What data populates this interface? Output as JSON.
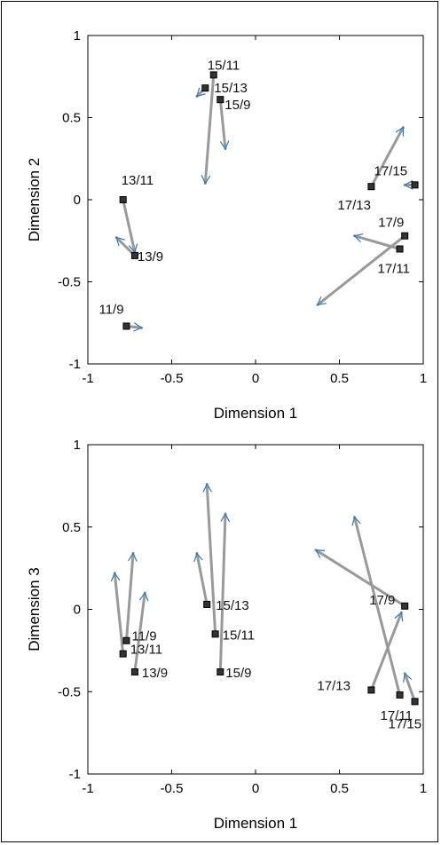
{
  "colors": {
    "axis": "#000000",
    "segment": "#999999",
    "arrow": "#2a7ab9",
    "marker_fill": "#333333",
    "marker_edge": "#000000"
  },
  "chart_data": [
    {
      "type": "scatter",
      "xlabel": "Dimension 1",
      "ylabel": "Dimension 2",
      "xlim": [
        -1,
        1
      ],
      "ylim": [
        -1,
        1
      ],
      "xticks": [
        "-1",
        "-0.5",
        "0",
        "0.5",
        "1"
      ],
      "yticks": [
        "-1",
        "-0.5",
        "0",
        "0.5",
        "1"
      ],
      "grid": false,
      "points": [
        {
          "label": "13/11",
          "x": -0.79,
          "y": 0.0,
          "arrow_from": [
            -0.79,
            0.0
          ],
          "arrow_to": [
            -0.72,
            -0.32
          ]
        },
        {
          "label": "13/9",
          "x": -0.72,
          "y": -0.34,
          "arrow_from": [
            -0.72,
            -0.34
          ],
          "arrow_to": [
            -0.83,
            -0.23
          ]
        },
        {
          "label": "11/9",
          "x": -0.77,
          "y": -0.77,
          "arrow_from": [
            -0.77,
            -0.77
          ],
          "arrow_to": [
            -0.68,
            -0.78
          ]
        },
        {
          "label": "15/11",
          "x": -0.25,
          "y": 0.76,
          "arrow_from": [
            -0.25,
            0.76
          ],
          "arrow_to": [
            -0.3,
            0.1
          ]
        },
        {
          "label": "15/13",
          "x": -0.3,
          "y": 0.68,
          "arrow_from": [
            -0.3,
            0.68
          ],
          "arrow_to": [
            -0.35,
            0.63
          ]
        },
        {
          "label": "15/9",
          "x": -0.21,
          "y": 0.61,
          "arrow_from": [
            -0.21,
            0.61
          ],
          "arrow_to": [
            -0.18,
            0.31
          ]
        },
        {
          "label": "17/15",
          "x": 0.95,
          "y": 0.09,
          "arrow_from": [
            0.95,
            0.09
          ],
          "arrow_to": [
            0.89,
            0.09
          ]
        },
        {
          "label": "17/13",
          "x": 0.69,
          "y": 0.08,
          "arrow_from": [
            0.69,
            0.08
          ],
          "arrow_to": [
            0.88,
            0.44
          ]
        },
        {
          "label": "17/9",
          "x": 0.89,
          "y": -0.22,
          "arrow_from": [
            0.89,
            -0.22
          ],
          "arrow_to": [
            0.37,
            -0.64
          ]
        },
        {
          "label": "17/11",
          "x": 0.86,
          "y": -0.3,
          "arrow_from": [
            0.86,
            -0.3
          ],
          "arrow_to": [
            0.59,
            -0.22
          ]
        }
      ]
    },
    {
      "type": "scatter",
      "xlabel": "Dimension 1",
      "ylabel": "Dimension 3",
      "xlim": [
        -1,
        1
      ],
      "ylim": [
        -1,
        1
      ],
      "xticks": [
        "-1",
        "-0.5",
        "0",
        "0.5",
        "1"
      ],
      "yticks": [
        "-1",
        "-0.5",
        "0",
        "0.5",
        "1"
      ],
      "grid": false,
      "points": [
        {
          "label": "11/9",
          "x": -0.77,
          "y": -0.19,
          "arrow_from": [
            -0.77,
            -0.19
          ],
          "arrow_to": [
            -0.73,
            0.34
          ]
        },
        {
          "label": "13/11",
          "x": -0.79,
          "y": -0.27,
          "arrow_from": [
            -0.79,
            -0.27
          ],
          "arrow_to": [
            -0.84,
            0.22
          ]
        },
        {
          "label": "13/9",
          "x": -0.72,
          "y": -0.38,
          "arrow_from": [
            -0.72,
            -0.38
          ],
          "arrow_to": [
            -0.66,
            0.1
          ]
        },
        {
          "label": "15/13",
          "x": -0.29,
          "y": 0.03,
          "arrow_from": [
            -0.29,
            0.03
          ],
          "arrow_to": [
            -0.35,
            0.34
          ]
        },
        {
          "label": "15/11",
          "x": -0.24,
          "y": -0.15,
          "arrow_from": [
            -0.24,
            -0.15
          ],
          "arrow_to": [
            -0.29,
            0.76
          ]
        },
        {
          "label": "15/9",
          "x": -0.21,
          "y": -0.38,
          "arrow_from": [
            -0.21,
            -0.38
          ],
          "arrow_to": [
            -0.18,
            0.58
          ]
        },
        {
          "label": "17/9",
          "x": 0.89,
          "y": 0.02,
          "arrow_from": [
            0.89,
            0.02
          ],
          "arrow_to": [
            0.36,
            0.36
          ]
        },
        {
          "label": "17/13",
          "x": 0.69,
          "y": -0.49,
          "arrow_from": [
            0.69,
            -0.49
          ],
          "arrow_to": [
            0.87,
            -0.02
          ]
        },
        {
          "label": "17/11",
          "x": 0.86,
          "y": -0.52,
          "arrow_from": [
            0.86,
            -0.52
          ],
          "arrow_to": [
            0.59,
            0.56
          ]
        },
        {
          "label": "17/15",
          "x": 0.95,
          "y": -0.56,
          "arrow_from": [
            0.95,
            -0.56
          ],
          "arrow_to": [
            0.89,
            -0.39
          ]
        }
      ]
    }
  ]
}
